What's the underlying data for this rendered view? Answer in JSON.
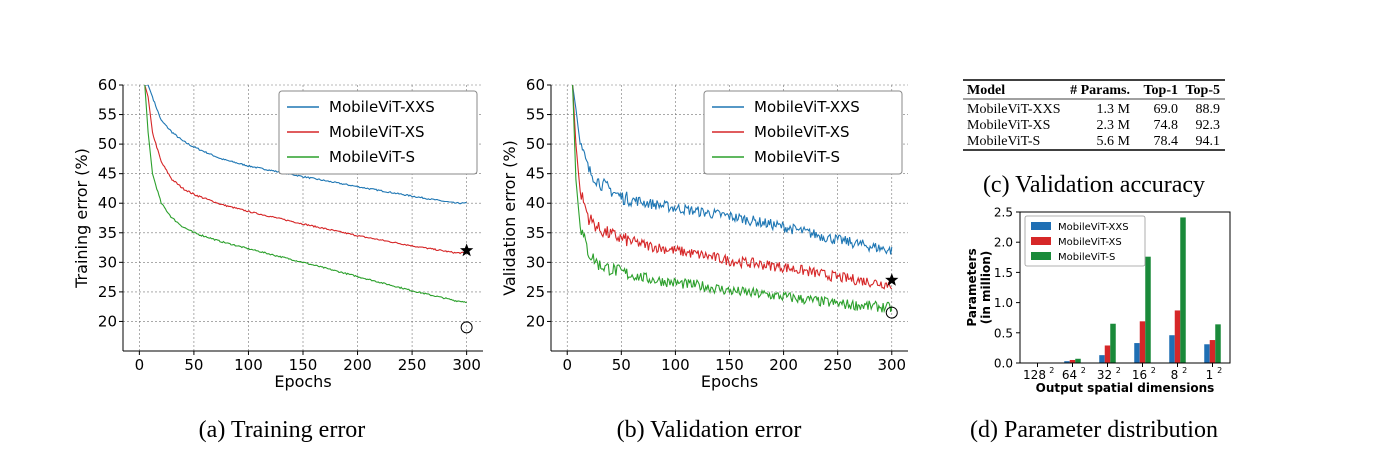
{
  "colors": {
    "xxs": "#1f77b4",
    "xs": "#d62728",
    "s": "#2ca02c",
    "bar_xxs": "#1f6fb4",
    "bar_xs": "#d62728",
    "bar_s": "#1a8a3a"
  },
  "captions": {
    "a": "(a) Training error",
    "b": "(b) Validation error",
    "c": "(c) Validation accuracy",
    "d": "(d) Parameter distribution"
  },
  "accuracy_table": {
    "headers": [
      "Model",
      "# Params.",
      "Top-1",
      "Top-5"
    ],
    "rows": [
      [
        "MobileViT-XXS",
        "1.3 M",
        "69.0",
        "88.9"
      ],
      [
        "MobileViT-XS",
        "2.3 M",
        "74.8",
        "92.3"
      ],
      [
        "MobileViT-S",
        "5.6 M",
        "78.4",
        "94.1"
      ]
    ]
  },
  "chart_data": [
    {
      "id": "training",
      "type": "line",
      "title": "",
      "xlabel": "Epochs",
      "ylabel": "Training error (%)",
      "xlim": [
        -15,
        315
      ],
      "ylim": [
        15,
        60
      ],
      "xticks": [
        0,
        50,
        100,
        150,
        200,
        250,
        300
      ],
      "yticks": [
        20,
        25,
        30,
        35,
        40,
        45,
        50,
        55,
        60
      ],
      "grid": true,
      "legend": "top-right",
      "noise": 0.12,
      "series": [
        {
          "name": "MobileViT-XXS",
          "color_key": "xxs",
          "x": [
            5,
            8,
            12,
            20,
            30,
            40,
            50,
            75,
            100,
            150,
            200,
            250,
            290,
            300
          ],
          "y": [
            60,
            60,
            58,
            54,
            52,
            50.5,
            49.5,
            47.5,
            46.3,
            44.5,
            42.8,
            41.2,
            40.0,
            40.0
          ]
        },
        {
          "name": "MobileViT-XS",
          "color_key": "xs",
          "x": [
            5,
            8,
            12,
            20,
            30,
            40,
            50,
            75,
            100,
            150,
            200,
            250,
            290,
            300
          ],
          "y": [
            60,
            58,
            52,
            47,
            44,
            42.5,
            41.5,
            39.8,
            38.6,
            36.5,
            34.5,
            32.8,
            31.6,
            31.6
          ]
        },
        {
          "name": "MobileViT-S",
          "color_key": "s",
          "x": [
            5,
            8,
            12,
            20,
            30,
            40,
            50,
            75,
            100,
            150,
            200,
            250,
            290,
            300
          ],
          "y": [
            60,
            52,
            45,
            40,
            37.5,
            36,
            35,
            33.5,
            32.3,
            30.0,
            27.6,
            25.2,
            23.5,
            23.3
          ]
        }
      ],
      "markers": [
        {
          "type": "star",
          "x": 300,
          "y": 32
        },
        {
          "type": "circle",
          "x": 300,
          "y": 19
        }
      ]
    },
    {
      "id": "validation",
      "type": "line",
      "title": "",
      "xlabel": "Epochs",
      "ylabel": "Validation error (%)",
      "xlim": [
        -15,
        315
      ],
      "ylim": [
        15,
        60
      ],
      "xticks": [
        0,
        50,
        100,
        150,
        200,
        250,
        300
      ],
      "yticks": [
        20,
        25,
        30,
        35,
        40,
        45,
        50,
        55,
        60
      ],
      "grid": true,
      "legend": "top-right",
      "noise": 0.9,
      "series": [
        {
          "name": "MobileViT-XXS",
          "color_key": "xxs",
          "x": [
            5,
            8,
            12,
            20,
            30,
            50,
            75,
            100,
            125,
            150,
            200,
            250,
            300
          ],
          "y": [
            60,
            56,
            50,
            45.5,
            43.5,
            41,
            40,
            39.2,
            38.5,
            37.8,
            36,
            33.8,
            32
          ]
        },
        {
          "name": "MobileViT-XS",
          "color_key": "xs",
          "x": [
            5,
            8,
            12,
            20,
            30,
            50,
            75,
            100,
            125,
            150,
            200,
            250,
            300
          ],
          "y": [
            60,
            50,
            42,
            37.5,
            35.5,
            34,
            32.8,
            32,
            31.2,
            30.3,
            29.2,
            27.5,
            26.2
          ]
        },
        {
          "name": "MobileViT-S",
          "color_key": "s",
          "x": [
            5,
            8,
            12,
            20,
            30,
            50,
            75,
            100,
            125,
            150,
            200,
            250,
            300
          ],
          "y": [
            60,
            44,
            36,
            31.5,
            29.5,
            28.3,
            27.2,
            26.5,
            26,
            25.2,
            24.2,
            23,
            22.3
          ]
        }
      ],
      "markers": [
        {
          "type": "star",
          "x": 300,
          "y": 27
        },
        {
          "type": "circle",
          "x": 300,
          "y": 21.5
        }
      ]
    },
    {
      "id": "parameters",
      "type": "bar",
      "title": "",
      "xlabel": "Output spatial dimensions",
      "ylabel": "Parameters (in million)",
      "ylabel_lines": [
        "Parameters",
        "(in million)"
      ],
      "categories": [
        {
          "base": "128",
          "sup": "2"
        },
        {
          "base": "64",
          "sup": "2"
        },
        {
          "base": "32",
          "sup": "2"
        },
        {
          "base": "16",
          "sup": "2"
        },
        {
          "base": "8",
          "sup": "2"
        },
        {
          "base": "1",
          "sup": "2"
        }
      ],
      "ylim": [
        0,
        2.5
      ],
      "yticks": [
        "0.0",
        "0.5",
        "1.0",
        "1.5",
        "2.0",
        "2.5"
      ],
      "grid": false,
      "legend": "top-left",
      "series": [
        {
          "name": "MobileViT-XXS",
          "color_key": "bar_xxs",
          "values": [
            0.0,
            0.03,
            0.13,
            0.33,
            0.46,
            0.31
          ]
        },
        {
          "name": "MobileViT-XS",
          "color_key": "bar_xs",
          "values": [
            0.0,
            0.05,
            0.29,
            0.69,
            0.87,
            0.38
          ]
        },
        {
          "name": "MobileViT-S",
          "color_key": "bar_s",
          "values": [
            0.0,
            0.07,
            0.65,
            1.76,
            2.41,
            0.64
          ]
        }
      ]
    }
  ]
}
